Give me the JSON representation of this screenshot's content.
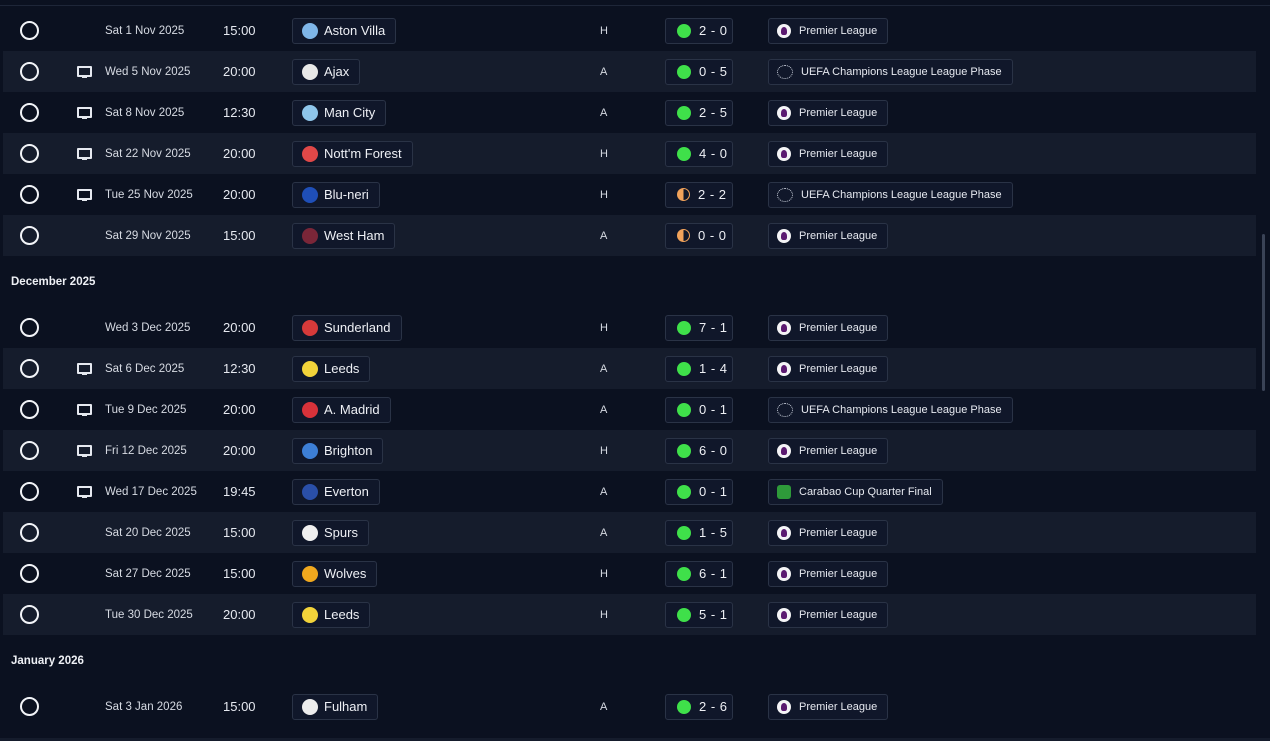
{
  "groups": [
    {
      "month": "",
      "fixtures": [
        {
          "date": "Sat 1 Nov 2025",
          "time": "15:00",
          "tv": false,
          "team": "Aston Villa",
          "crest": "#7fb6e8",
          "venue": "H",
          "result": "win",
          "score": "2 - 0",
          "competition": "Premier League",
          "comp_icon": "pl"
        },
        {
          "date": "Wed 5 Nov 2025",
          "time": "20:00",
          "tv": true,
          "team": "Ajax",
          "crest": "#e8e8e8",
          "venue": "A",
          "result": "win",
          "score": "0 - 5",
          "competition": "UEFA Champions League League Phase",
          "comp_icon": "ucl"
        },
        {
          "date": "Sat 8 Nov 2025",
          "time": "12:30",
          "tv": true,
          "team": "Man City",
          "crest": "#8fc6ea",
          "venue": "A",
          "result": "win",
          "score": "2 - 5",
          "competition": "Premier League",
          "comp_icon": "pl"
        },
        {
          "date": "Sat 22 Nov 2025",
          "time": "20:00",
          "tv": true,
          "team": "Nott'm Forest",
          "crest": "#e04848",
          "venue": "H",
          "result": "win",
          "score": "4 - 0",
          "competition": "Premier League",
          "comp_icon": "pl"
        },
        {
          "date": "Tue 25 Nov 2025",
          "time": "20:00",
          "tv": true,
          "team": "Blu-neri",
          "crest": "#1f4fb8",
          "venue": "H",
          "result": "draw",
          "score": "2 - 2",
          "competition": "UEFA Champions League League Phase",
          "comp_icon": "ucl"
        },
        {
          "date": "Sat 29 Nov 2025",
          "time": "15:00",
          "tv": false,
          "team": "West Ham",
          "crest": "#7a2638",
          "venue": "A",
          "result": "draw",
          "score": "0 - 0",
          "competition": "Premier League",
          "comp_icon": "pl"
        }
      ]
    },
    {
      "month": "December 2025",
      "fixtures": [
        {
          "date": "Wed 3 Dec 2025",
          "time": "20:00",
          "tv": false,
          "team": "Sunderland",
          "crest": "#d63a3a",
          "venue": "H",
          "result": "win",
          "score": "7 - 1",
          "competition": "Premier League",
          "comp_icon": "pl"
        },
        {
          "date": "Sat 6 Dec 2025",
          "time": "12:30",
          "tv": true,
          "team": "Leeds",
          "crest": "#f2d33a",
          "venue": "A",
          "result": "win",
          "score": "1 - 4",
          "competition": "Premier League",
          "comp_icon": "pl"
        },
        {
          "date": "Tue 9 Dec 2025",
          "time": "20:00",
          "tv": true,
          "team": "A. Madrid",
          "crest": "#d8323a",
          "venue": "A",
          "result": "win",
          "score": "0 - 1",
          "competition": "UEFA Champions League League Phase",
          "comp_icon": "ucl"
        },
        {
          "date": "Fri 12 Dec 2025",
          "time": "20:00",
          "tv": true,
          "team": "Brighton",
          "crest": "#3d7fd6",
          "venue": "H",
          "result": "win",
          "score": "6 - 0",
          "competition": "Premier League",
          "comp_icon": "pl"
        },
        {
          "date": "Wed 17 Dec 2025",
          "time": "19:45",
          "tv": true,
          "team": "Everton",
          "crest": "#2a4fa8",
          "venue": "A",
          "result": "win",
          "score": "0 - 1",
          "competition": "Carabao Cup Quarter Final",
          "comp_icon": "cup"
        },
        {
          "date": "Sat 20 Dec 2025",
          "time": "15:00",
          "tv": false,
          "team": "Spurs",
          "crest": "#f0f0f0",
          "venue": "A",
          "result": "win",
          "score": "1 - 5",
          "competition": "Premier League",
          "comp_icon": "pl"
        },
        {
          "date": "Sat 27 Dec 2025",
          "time": "15:00",
          "tv": false,
          "team": "Wolves",
          "crest": "#f0a81e",
          "venue": "H",
          "result": "win",
          "score": "6 - 1",
          "competition": "Premier League",
          "comp_icon": "pl"
        },
        {
          "date": "Tue 30 Dec 2025",
          "time": "20:00",
          "tv": false,
          "team": "Leeds",
          "crest": "#f2d33a",
          "venue": "H",
          "result": "win",
          "score": "5 - 1",
          "competition": "Premier League",
          "comp_icon": "pl"
        }
      ]
    },
    {
      "month": "January 2026",
      "fixtures": [
        {
          "date": "Sat 3 Jan 2026",
          "time": "15:00",
          "tv": false,
          "team": "Fulham",
          "crest": "#ececec",
          "venue": "A",
          "result": "win",
          "score": "2 - 6",
          "competition": "Premier League",
          "comp_icon": "pl"
        }
      ]
    }
  ]
}
